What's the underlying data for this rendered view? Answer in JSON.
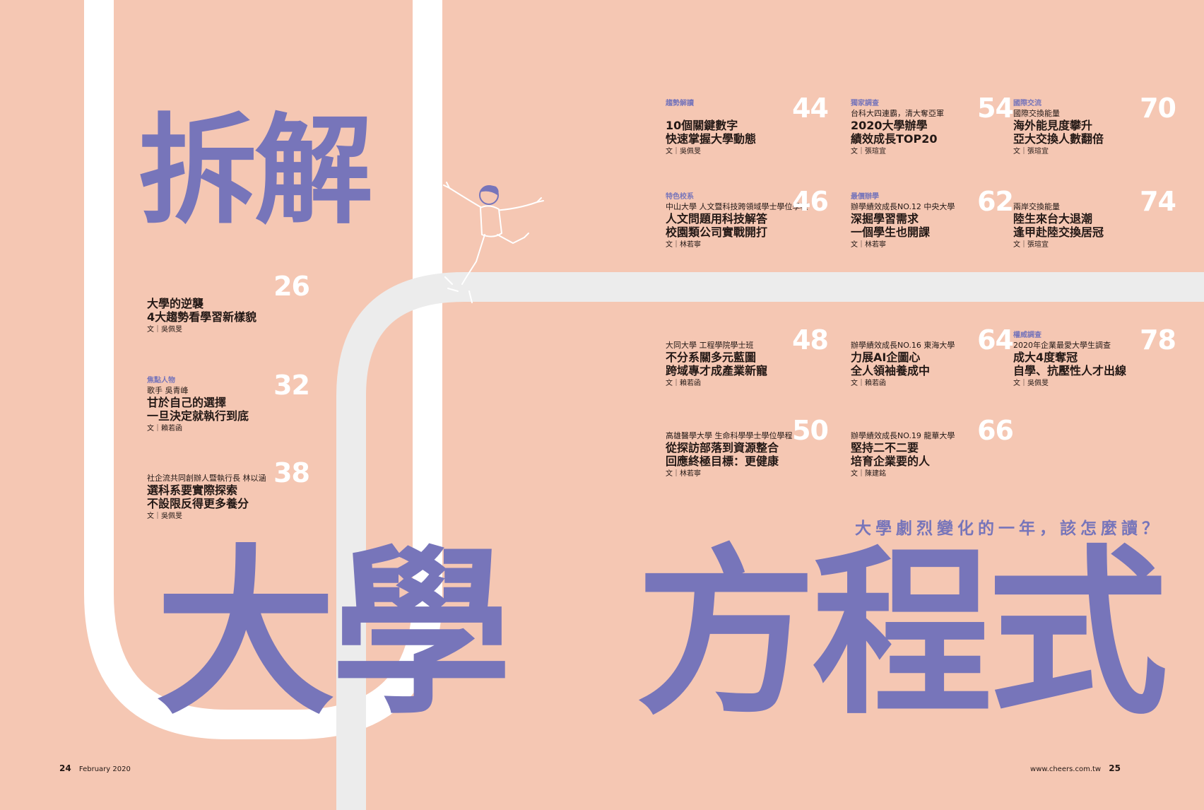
{
  "colors": {
    "background": "#f5c7b3",
    "accent": "#7775ba",
    "road": "#ffffff",
    "number": "#ffffff"
  },
  "titles": {
    "chaijie": "拆解",
    "daxue": "大學",
    "fangchengshi": "方程式"
  },
  "subtitle": "大學劇烈變化的一年，該怎麼讀？",
  "articles": [
    {
      "number": "26",
      "category": "",
      "kicker": "",
      "headline": [
        "大學的逆襲",
        "4大趨勢看學習新樣貌"
      ],
      "byline": "文｜吳佩旻"
    },
    {
      "number": "32",
      "category": "焦點人物",
      "kicker": "歌手 吳青峰",
      "headline": [
        "甘於自己的選擇",
        "一旦決定就執行到底"
      ],
      "byline": "文｜賴若函"
    },
    {
      "number": "38",
      "category": "",
      "kicker": "社企流共同創辦人暨執行長 林以涵",
      "headline": [
        "選科系要實際探索",
        "不設限反得更多養分"
      ],
      "byline": "文｜吳佩旻"
    },
    {
      "number": "44",
      "category": "趨勢解讀",
      "kicker": "",
      "headline": [
        "10個關鍵數字",
        "快速掌握大學動態"
      ],
      "byline": "文｜吳佩旻"
    },
    {
      "number": "46",
      "category": "特色校系",
      "kicker": "中山大學 人文暨科技跨領域學士學位學程",
      "headline": [
        "人文問題用科技解答",
        "校園類公司實戰開打"
      ],
      "byline": "文｜林若寧"
    },
    {
      "number": "48",
      "category": "",
      "kicker": "大同大學 工程學院學士班",
      "headline": [
        "不分系關多元藍圖",
        "跨域專才成產業新寵"
      ],
      "byline": "文｜賴若函"
    },
    {
      "number": "50",
      "category": "",
      "kicker": "高雄醫學大學 生命科學學士學位學程",
      "headline": [
        "從探訪部落到資源整合",
        "回應終極目標：更健康"
      ],
      "byline": "文｜林若寧"
    },
    {
      "number": "54",
      "category": "獨家調查",
      "kicker": "台科大四連霸，清大奪亞軍",
      "headline": [
        "2020大學辦學",
        "績效成長TOP20"
      ],
      "byline": "文｜張瑄宜"
    },
    {
      "number": "62",
      "category": "最價辦學",
      "kicker": "辦學績效成長NO.12 中央大學",
      "headline": [
        "深掘學習需求",
        "一個學生也開課"
      ],
      "byline": "文｜林若寧"
    },
    {
      "number": "64",
      "category": "",
      "kicker": "辦學績效成長NO.16 東海大學",
      "headline": [
        "力展AI企圖心",
        "全人領袖養成中"
      ],
      "byline": "文｜賴若函"
    },
    {
      "number": "66",
      "category": "",
      "kicker": "辦學績效成長NO.19 龍華大學",
      "headline": [
        "堅持二不二要",
        "培育企業要的人"
      ],
      "byline": "文｜陳建銘"
    },
    {
      "number": "70",
      "category": "國際交流",
      "kicker": "國際交換能量",
      "headline": [
        "海外能見度攀升",
        "亞大交換人數翻倍"
      ],
      "byline": "文｜張瑄宜"
    },
    {
      "number": "74",
      "category": "",
      "kicker": "兩岸交換能量",
      "headline": [
        "陸生來台大退潮",
        "逢甲赴陸交換居冠"
      ],
      "byline": "文｜張瑄宜"
    },
    {
      "number": "78",
      "category": "權威調查",
      "kicker": "2020年企業最愛大學生調查",
      "headline": [
        "成大4度奪冠",
        "自學、抗壓性人才出線"
      ],
      "byline": "文｜吳佩旻"
    }
  ],
  "footer": {
    "left_page": "24",
    "left_date": "February 2020",
    "right_url": "www.cheers.com.tw",
    "right_page": "25"
  }
}
